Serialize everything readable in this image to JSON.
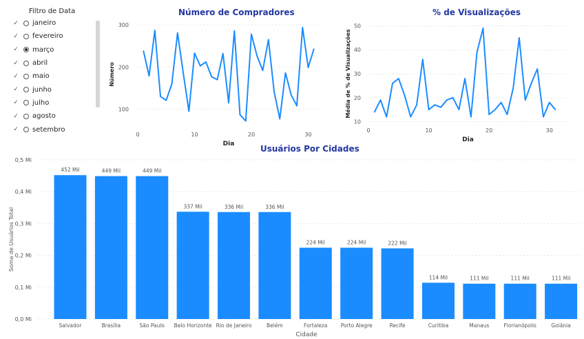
{
  "slicer": {
    "title": "Filtro de Data",
    "items": [
      {
        "label": "janeiro",
        "selected": false
      },
      {
        "label": "fevereiro",
        "selected": false
      },
      {
        "label": "março",
        "selected": true
      },
      {
        "label": "abril",
        "selected": false
      },
      {
        "label": "maio",
        "selected": false
      },
      {
        "label": "junho",
        "selected": false
      },
      {
        "label": "julho",
        "selected": false
      },
      {
        "label": "agosto",
        "selected": false
      },
      {
        "label": "setembro",
        "selected": false
      }
    ],
    "chevron_icon": "chevron-down-icon"
  },
  "colors": {
    "accent": "#1a8cff",
    "title": "#2437a0",
    "grid": "#e6e6e6"
  },
  "chart_data": [
    {
      "type": "line",
      "title": "Número de Compradores",
      "xlabel": "Dia",
      "ylabel": "Número",
      "xlim": [
        0,
        32
      ],
      "ylim": [
        55,
        310
      ],
      "xticks": [
        0,
        10,
        20,
        30
      ],
      "yticks": [
        100,
        200,
        300
      ],
      "grid": true,
      "x": [
        1,
        2,
        3,
        4,
        5,
        6,
        7,
        8,
        9,
        10,
        11,
        12,
        13,
        14,
        15,
        16,
        17,
        18,
        19,
        20,
        21,
        22,
        23,
        24,
        25,
        26,
        27,
        28,
        29,
        30,
        31
      ],
      "values": [
        238,
        179,
        287,
        130,
        121,
        160,
        281,
        187,
        95,
        233,
        203,
        212,
        177,
        170,
        232,
        115,
        286,
        87,
        72,
        278,
        226,
        192,
        265,
        142,
        77,
        186,
        134,
        108,
        294,
        199,
        243
      ]
    },
    {
      "type": "line",
      "title": "% de Visualizações",
      "xlabel": "Dia",
      "ylabel": "Média de % de Visualizações",
      "xlim": [
        0,
        33
      ],
      "ylim": [
        9,
        51
      ],
      "xticks": [
        0,
        10,
        20,
        30
      ],
      "yticks": [
        10,
        20,
        30,
        40,
        50
      ],
      "grid": true,
      "x": [
        1,
        2,
        3,
        4,
        5,
        6,
        7,
        8,
        9,
        10,
        11,
        12,
        13,
        14,
        15,
        16,
        17,
        18,
        19,
        20,
        21,
        22,
        23,
        24,
        25,
        26,
        27,
        28,
        29,
        30,
        31
      ],
      "values": [
        14,
        19,
        12,
        26,
        28,
        21,
        12,
        17,
        36,
        15,
        17,
        16,
        19,
        20,
        15,
        28,
        12,
        39,
        49,
        13,
        15,
        18,
        13,
        24,
        45,
        19,
        26,
        32,
        12,
        18,
        15
      ]
    },
    {
      "type": "bar",
      "title": "Usuários Por Cidades",
      "xlabel": "Cidade",
      "ylabel": "Soma de Usuários Total",
      "ylim": [
        0,
        0.5
      ],
      "yticks": [
        "0,0 Mi",
        "0,1 Mi",
        "0,2 Mi",
        "0,3 Mi",
        "0,4 Mi",
        "0,5 Mi"
      ],
      "grid": true,
      "categories": [
        "Salvador",
        "Brasília",
        "São Paulo",
        "Belo Horizonte",
        "Rio de Janeiro",
        "Belém",
        "Fortaleza",
        "Porto Alegre",
        "Recife",
        "Curitiba",
        "Manaus",
        "Florianópolis",
        "Goiânia"
      ],
      "values": [
        0.452,
        0.449,
        0.449,
        0.337,
        0.336,
        0.336,
        0.224,
        0.224,
        0.222,
        0.114,
        0.111,
        0.111,
        0.111
      ],
      "data_labels": [
        "452 Mil",
        "449 Mil",
        "449 Mil",
        "337 Mil",
        "336 Mil",
        "336 Mil",
        "224 Mil",
        "224 Mil",
        "222 Mil",
        "114 Mil",
        "111 Mil",
        "111 Mil",
        "111 Mil"
      ]
    }
  ]
}
